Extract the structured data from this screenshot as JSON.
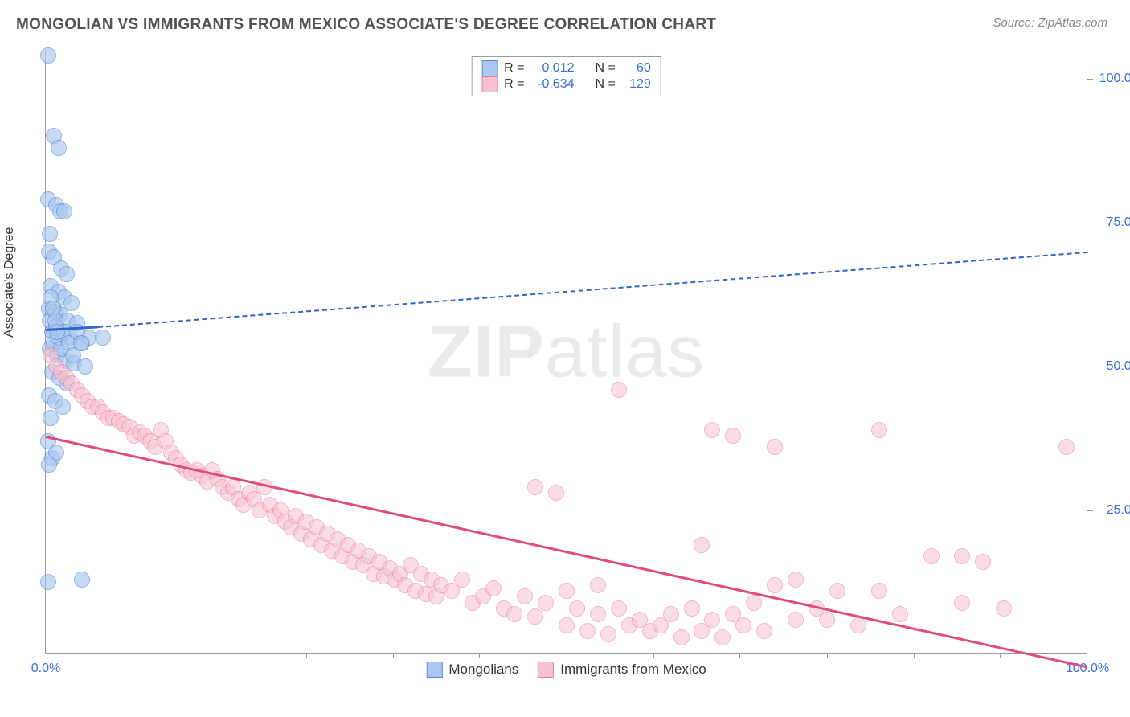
{
  "title": "MONGOLIAN VS IMMIGRANTS FROM MEXICO ASSOCIATE'S DEGREE CORRELATION CHART",
  "source": "Source: ZipAtlas.com",
  "y_axis_label": "Associate's Degree",
  "x_domain": [
    0,
    100
  ],
  "y_domain": [
    0,
    105
  ],
  "x_ticks": [
    {
      "pos": 0,
      "label": "0.0%"
    },
    {
      "pos": 100,
      "label": "100.0%"
    }
  ],
  "y_ticks": [
    {
      "pos": 25,
      "label": "25.0%"
    },
    {
      "pos": 50,
      "label": "50.0%"
    },
    {
      "pos": 75,
      "label": "75.0%"
    },
    {
      "pos": 100,
      "label": "100.0%"
    }
  ],
  "x_minor_ticks": [
    8.3,
    16.6,
    25,
    33.3,
    41.6,
    50,
    58.3,
    66.6,
    75,
    83.3,
    91.6
  ],
  "tick_color": "#3b6fd6",
  "watermark_a": "ZIP",
  "watermark_b": "atlas",
  "series": [
    {
      "name": "Mongolians",
      "color_fill": "#a9c7ef",
      "color_stroke": "#5a8fd6",
      "color_line": "#2e64c9",
      "marker_radius": 10,
      "marker_opacity": 0.65,
      "R": "0.012",
      "N": "60",
      "trend": {
        "x0": 0,
        "y0": 56.5,
        "x1": 5,
        "y1": 57,
        "x2": 100,
        "y2": 70,
        "dashed_from": 5
      },
      "points": [
        [
          0.2,
          104
        ],
        [
          0.8,
          90
        ],
        [
          1.2,
          88
        ],
        [
          0.2,
          79
        ],
        [
          1.0,
          78
        ],
        [
          1.4,
          77
        ],
        [
          1.8,
          77
        ],
        [
          0.4,
          73
        ],
        [
          0.3,
          70
        ],
        [
          0.8,
          69
        ],
        [
          1.5,
          67
        ],
        [
          2.0,
          66
        ],
        [
          0.5,
          64
        ],
        [
          1.2,
          63
        ],
        [
          1.8,
          62
        ],
        [
          2.5,
          61
        ],
        [
          0.3,
          60
        ],
        [
          0.9,
          59.5
        ],
        [
          1.4,
          59
        ],
        [
          2.1,
          58
        ],
        [
          3.0,
          57.5
        ],
        [
          0.8,
          56
        ],
        [
          1.5,
          55.5
        ],
        [
          2.3,
          55
        ],
        [
          3.5,
          54
        ],
        [
          4.2,
          55
        ],
        [
          5.5,
          55
        ],
        [
          0.4,
          53
        ],
        [
          1.1,
          52
        ],
        [
          1.9,
          51
        ],
        [
          2.7,
          50.5
        ],
        [
          3.8,
          50
        ],
        [
          0.6,
          49
        ],
        [
          1.3,
          48
        ],
        [
          2.0,
          47
        ],
        [
          0.3,
          45
        ],
        [
          0.9,
          44
        ],
        [
          1.6,
          43
        ],
        [
          0.5,
          41
        ],
        [
          0.2,
          37
        ],
        [
          0.6,
          34
        ],
        [
          1.0,
          35
        ],
        [
          0.3,
          33
        ],
        [
          3.5,
          13
        ],
        [
          0.2,
          12.5
        ],
        [
          0.4,
          58
        ],
        [
          0.6,
          56
        ],
        [
          0.8,
          54
        ],
        [
          1.0,
          57
        ],
        [
          1.2,
          55
        ],
        [
          1.5,
          53
        ],
        [
          1.8,
          56
        ],
        [
          2.2,
          54
        ],
        [
          2.6,
          52
        ],
        [
          3.0,
          56
        ],
        [
          3.4,
          54
        ],
        [
          0.5,
          62
        ],
        [
          0.7,
          60
        ],
        [
          0.9,
          58
        ],
        [
          1.1,
          56
        ]
      ]
    },
    {
      "name": "Immigrants from Mexico",
      "color_fill": "#f7c2cf",
      "color_stroke": "#e97ba0",
      "color_line": "#e14a7f",
      "marker_radius": 10,
      "marker_opacity": 0.55,
      "R": "-0.634",
      "N": "129",
      "trend": {
        "x0": 0,
        "y0": 38,
        "x1": 100,
        "y1": -2,
        "dashed_from": null
      },
      "points": [
        [
          0.5,
          52
        ],
        [
          1.0,
          50
        ],
        [
          1.5,
          49
        ],
        [
          2.0,
          48
        ],
        [
          2.5,
          47
        ],
        [
          3.0,
          46
        ],
        [
          3.5,
          45
        ],
        [
          4.0,
          44
        ],
        [
          4.5,
          43
        ],
        [
          5.0,
          43
        ],
        [
          5.5,
          42
        ],
        [
          6.0,
          41
        ],
        [
          6.5,
          41
        ],
        [
          7.0,
          40.5
        ],
        [
          7.5,
          40
        ],
        [
          8,
          39.5
        ],
        [
          8.5,
          38
        ],
        [
          9,
          38.5
        ],
        [
          9.5,
          38
        ],
        [
          10,
          37
        ],
        [
          10.5,
          36
        ],
        [
          11,
          39
        ],
        [
          11.5,
          37
        ],
        [
          12,
          35
        ],
        [
          12.5,
          34
        ],
        [
          13,
          33
        ],
        [
          13.5,
          32
        ],
        [
          14,
          31.5
        ],
        [
          14.5,
          32
        ],
        [
          15,
          31
        ],
        [
          15.5,
          30
        ],
        [
          16,
          32
        ],
        [
          16.5,
          30.5
        ],
        [
          17,
          29
        ],
        [
          17.5,
          28
        ],
        [
          18,
          29
        ],
        [
          18.5,
          27
        ],
        [
          19,
          26
        ],
        [
          19.5,
          28
        ],
        [
          20,
          27
        ],
        [
          20.5,
          25
        ],
        [
          21,
          29
        ],
        [
          21.5,
          26
        ],
        [
          22,
          24
        ],
        [
          22.5,
          25
        ],
        [
          23,
          23
        ],
        [
          23.5,
          22
        ],
        [
          24,
          24
        ],
        [
          24.5,
          21
        ],
        [
          25,
          23
        ],
        [
          25.5,
          20
        ],
        [
          26,
          22
        ],
        [
          26.5,
          19
        ],
        [
          27,
          21
        ],
        [
          27.5,
          18
        ],
        [
          28,
          20
        ],
        [
          28.5,
          17
        ],
        [
          29,
          19
        ],
        [
          29.5,
          16
        ],
        [
          30,
          18
        ],
        [
          30.5,
          15.5
        ],
        [
          31,
          17
        ],
        [
          31.5,
          14
        ],
        [
          32,
          16
        ],
        [
          32.5,
          13.5
        ],
        [
          33,
          15
        ],
        [
          33.5,
          13
        ],
        [
          34,
          14
        ],
        [
          34.5,
          12
        ],
        [
          35,
          15.5
        ],
        [
          35.5,
          11
        ],
        [
          36,
          14
        ],
        [
          36.5,
          10.5
        ],
        [
          37,
          13
        ],
        [
          37.5,
          10
        ],
        [
          38,
          12
        ],
        [
          39,
          11
        ],
        [
          40,
          13
        ],
        [
          41,
          9
        ],
        [
          42,
          10
        ],
        [
          43,
          11.5
        ],
        [
          44,
          8
        ],
        [
          45,
          7
        ],
        [
          46,
          10
        ],
        [
          47,
          6.5
        ],
        [
          48,
          9
        ],
        [
          49,
          28
        ],
        [
          50,
          5
        ],
        [
          51,
          8
        ],
        [
          52,
          4
        ],
        [
          53,
          7
        ],
        [
          54,
          3.5
        ],
        [
          55,
          8
        ],
        [
          56,
          5
        ],
        [
          57,
          6
        ],
        [
          58,
          4
        ],
        [
          59,
          5
        ],
        [
          60,
          7
        ],
        [
          61,
          3
        ],
        [
          62,
          8
        ],
        [
          63,
          4
        ],
        [
          64,
          6
        ],
        [
          65,
          3
        ],
        [
          66,
          7
        ],
        [
          67,
          5
        ],
        [
          68,
          9
        ],
        [
          69,
          4
        ],
        [
          70,
          12
        ],
        [
          72,
          6
        ],
        [
          74,
          8
        ],
        [
          76,
          11
        ],
        [
          78,
          5
        ],
        [
          55,
          46
        ],
        [
          64,
          39
        ],
        [
          66,
          38
        ],
        [
          70,
          36
        ],
        [
          63,
          19
        ],
        [
          72,
          13
        ],
        [
          80,
          11
        ],
        [
          82,
          7
        ],
        [
          85,
          17
        ],
        [
          88,
          9
        ],
        [
          90,
          16
        ],
        [
          92,
          8
        ],
        [
          98,
          36
        ],
        [
          88,
          17
        ],
        [
          80,
          39
        ],
        [
          75,
          6
        ],
        [
          47,
          29
        ],
        [
          50,
          11
        ],
        [
          53,
          12
        ]
      ]
    }
  ],
  "legend_top": {
    "r_label": "R = ",
    "n_label": "N = "
  },
  "legend_bottom": [
    {
      "label": "Mongolians",
      "fill": "#a9c7ef",
      "stroke": "#5a8fd6"
    },
    {
      "label": "Immigrants from Mexico",
      "fill": "#f7c2cf",
      "stroke": "#e97ba0"
    }
  ]
}
